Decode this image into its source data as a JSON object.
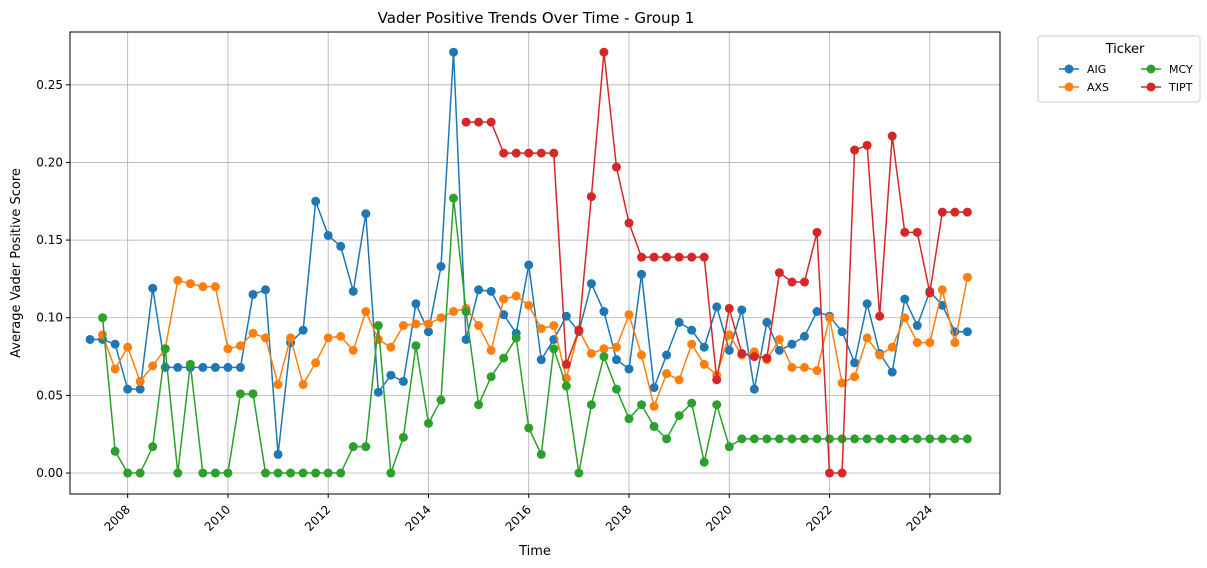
{
  "chart_data": {
    "type": "line",
    "title": "Vader Positive Trends Over Time - Group 1",
    "xlabel": "Time",
    "ylabel": "Average Vader Positive Score",
    "xlim": [
      2006.85,
      2025.4
    ],
    "ylim": [
      -0.0135,
      0.284
    ],
    "xticks": [
      "2008",
      "2010",
      "2012",
      "2014",
      "2016",
      "2018",
      "2020",
      "2022",
      "2024"
    ],
    "yticks": [
      "0.00",
      "0.05",
      "0.10",
      "0.15",
      "0.20",
      "0.25"
    ],
    "grid": true,
    "legend": {
      "title": "Ticker",
      "placement": "outside-top-right",
      "columns": 2
    },
    "series": [
      {
        "name": "AIG",
        "color": "#1f77b4",
        "points": [
          [
            2007.25,
            0.086
          ],
          [
            2007.5,
            0.086
          ],
          [
            2007.75,
            0.083
          ],
          [
            2008.0,
            0.054
          ],
          [
            2008.25,
            0.054
          ],
          [
            2008.5,
            0.119
          ],
          [
            2008.75,
            0.068
          ],
          [
            2009.0,
            0.068
          ],
          [
            2009.25,
            0.068
          ],
          [
            2009.5,
            0.068
          ],
          [
            2009.75,
            0.068
          ],
          [
            2010.0,
            0.068
          ],
          [
            2010.25,
            0.068
          ],
          [
            2010.5,
            0.115
          ],
          [
            2010.75,
            0.118
          ],
          [
            2011.0,
            0.012
          ],
          [
            2011.25,
            0.084
          ],
          [
            2011.5,
            0.092
          ],
          [
            2011.75,
            0.175
          ],
          [
            2012.0,
            0.153
          ],
          [
            2012.25,
            0.146
          ],
          [
            2012.5,
            0.117
          ],
          [
            2012.75,
            0.167
          ],
          [
            2013.0,
            0.052
          ],
          [
            2013.25,
            0.063
          ],
          [
            2013.5,
            0.059
          ],
          [
            2013.75,
            0.109
          ],
          [
            2014.0,
            0.091
          ],
          [
            2014.25,
            0.133
          ],
          [
            2014.5,
            0.271
          ],
          [
            2014.75,
            0.086
          ],
          [
            2015.0,
            0.118
          ],
          [
            2015.25,
            0.117
          ],
          [
            2015.5,
            0.102
          ],
          [
            2015.75,
            0.09
          ],
          [
            2016.0,
            0.134
          ],
          [
            2016.25,
            0.073
          ],
          [
            2016.5,
            0.086
          ],
          [
            2016.75,
            0.101
          ],
          [
            2017.0,
            0.091
          ],
          [
            2017.25,
            0.122
          ],
          [
            2017.5,
            0.104
          ],
          [
            2017.75,
            0.073
          ],
          [
            2018.0,
            0.067
          ],
          [
            2018.25,
            0.128
          ],
          [
            2018.5,
            0.055
          ],
          [
            2018.75,
            0.076
          ],
          [
            2019.0,
            0.097
          ],
          [
            2019.25,
            0.092
          ],
          [
            2019.5,
            0.081
          ],
          [
            2019.75,
            0.107
          ],
          [
            2020.0,
            0.079
          ],
          [
            2020.25,
            0.105
          ],
          [
            2020.5,
            0.054
          ],
          [
            2020.75,
            0.097
          ],
          [
            2021.0,
            0.079
          ],
          [
            2021.25,
            0.083
          ],
          [
            2021.5,
            0.088
          ],
          [
            2021.75,
            0.104
          ],
          [
            2022.0,
            0.101
          ],
          [
            2022.25,
            0.091
          ],
          [
            2022.5,
            0.071
          ],
          [
            2022.75,
            0.109
          ],
          [
            2023.0,
            0.077
          ],
          [
            2023.25,
            0.065
          ],
          [
            2023.5,
            0.112
          ],
          [
            2023.75,
            0.095
          ],
          [
            2024.0,
            0.117
          ],
          [
            2024.25,
            0.108
          ],
          [
            2024.5,
            0.091
          ],
          [
            2024.75,
            0.091
          ]
        ]
      },
      {
        "name": "AXS",
        "color": "#ff7f0e",
        "points": [
          [
            2007.5,
            0.089
          ],
          [
            2007.75,
            0.067
          ],
          [
            2008.0,
            0.081
          ],
          [
            2008.25,
            0.059
          ],
          [
            2008.5,
            0.069
          ],
          [
            2008.75,
            0.08
          ],
          [
            2009.0,
            0.124
          ],
          [
            2009.25,
            0.122
          ],
          [
            2009.5,
            0.12
          ],
          [
            2009.75,
            0.12
          ],
          [
            2010.0,
            0.08
          ],
          [
            2010.25,
            0.082
          ],
          [
            2010.5,
            0.09
          ],
          [
            2010.75,
            0.087
          ],
          [
            2011.0,
            0.057
          ],
          [
            2011.25,
            0.087
          ],
          [
            2011.5,
            0.057
          ],
          [
            2011.75,
            0.071
          ],
          [
            2012.0,
            0.087
          ],
          [
            2012.25,
            0.088
          ],
          [
            2012.5,
            0.079
          ],
          [
            2012.75,
            0.104
          ],
          [
            2013.0,
            0.086
          ],
          [
            2013.25,
            0.081
          ],
          [
            2013.5,
            0.095
          ],
          [
            2013.75,
            0.096
          ],
          [
            2014.0,
            0.096
          ],
          [
            2014.25,
            0.1
          ],
          [
            2014.5,
            0.104
          ],
          [
            2014.75,
            0.106
          ],
          [
            2015.0,
            0.095
          ],
          [
            2015.25,
            0.079
          ],
          [
            2015.5,
            0.112
          ],
          [
            2015.75,
            0.114
          ],
          [
            2016.0,
            0.108
          ],
          [
            2016.25,
            0.093
          ],
          [
            2016.5,
            0.095
          ],
          [
            2016.75,
            0.061
          ],
          [
            2017.0,
            0.092
          ],
          [
            2017.25,
            0.077
          ],
          [
            2017.5,
            0.08
          ],
          [
            2017.75,
            0.081
          ],
          [
            2018.0,
            0.102
          ],
          [
            2018.25,
            0.076
          ],
          [
            2018.5,
            0.043
          ],
          [
            2018.75,
            0.064
          ],
          [
            2019.0,
            0.06
          ],
          [
            2019.25,
            0.083
          ],
          [
            2019.5,
            0.07
          ],
          [
            2019.75,
            0.063
          ],
          [
            2020.0,
            0.089
          ],
          [
            2020.25,
            0.076
          ],
          [
            2020.5,
            0.078
          ],
          [
            2020.75,
            0.073
          ],
          [
            2021.0,
            0.086
          ],
          [
            2021.25,
            0.068
          ],
          [
            2021.5,
            0.068
          ],
          [
            2021.75,
            0.066
          ],
          [
            2022.0,
            0.1
          ],
          [
            2022.25,
            0.058
          ],
          [
            2022.5,
            0.062
          ],
          [
            2022.75,
            0.087
          ],
          [
            2023.0,
            0.076
          ],
          [
            2023.25,
            0.081
          ],
          [
            2023.5,
            0.1
          ],
          [
            2023.75,
            0.084
          ],
          [
            2024.0,
            0.084
          ],
          [
            2024.25,
            0.118
          ],
          [
            2024.5,
            0.084
          ],
          [
            2024.75,
            0.126
          ]
        ]
      },
      {
        "name": "MCY",
        "color": "#2ca02c",
        "points": [
          [
            2007.5,
            0.1
          ],
          [
            2007.75,
            0.014
          ],
          [
            2008.0,
            0.0
          ],
          [
            2008.25,
            0.0
          ],
          [
            2008.5,
            0.017
          ],
          [
            2008.75,
            0.08
          ],
          [
            2009.0,
            0.0
          ],
          [
            2009.25,
            0.07
          ],
          [
            2009.5,
            0.0
          ],
          [
            2009.75,
            0.0
          ],
          [
            2010.0,
            0.0
          ],
          [
            2010.25,
            0.051
          ],
          [
            2010.5,
            0.051
          ],
          [
            2010.75,
            0.0
          ],
          [
            2011.0,
            0.0
          ],
          [
            2011.25,
            0.0
          ],
          [
            2011.5,
            0.0
          ],
          [
            2011.75,
            0.0
          ],
          [
            2012.0,
            0.0
          ],
          [
            2012.25,
            0.0
          ],
          [
            2012.5,
            0.017
          ],
          [
            2012.75,
            0.017
          ],
          [
            2013.0,
            0.095
          ],
          [
            2013.25,
            0.0
          ],
          [
            2013.5,
            0.023
          ],
          [
            2013.75,
            0.082
          ],
          [
            2014.0,
            0.032
          ],
          [
            2014.25,
            0.047
          ],
          [
            2014.5,
            0.177
          ],
          [
            2014.75,
            0.104
          ],
          [
            2015.0,
            0.044
          ],
          [
            2015.25,
            0.062
          ],
          [
            2015.5,
            0.074
          ],
          [
            2015.75,
            0.087
          ],
          [
            2016.0,
            0.029
          ],
          [
            2016.25,
            0.012
          ],
          [
            2016.5,
            0.08
          ],
          [
            2016.75,
            0.056
          ],
          [
            2017.0,
            0.0
          ],
          [
            2017.25,
            0.044
          ],
          [
            2017.5,
            0.075
          ],
          [
            2017.75,
            0.054
          ],
          [
            2018.0,
            0.035
          ],
          [
            2018.25,
            0.044
          ],
          [
            2018.5,
            0.03
          ],
          [
            2018.75,
            0.022
          ],
          [
            2019.0,
            0.037
          ],
          [
            2019.25,
            0.045
          ],
          [
            2019.5,
            0.007
          ],
          [
            2019.75,
            0.044
          ],
          [
            2020.0,
            0.017
          ],
          [
            2020.25,
            0.022
          ],
          [
            2020.5,
            0.022
          ],
          [
            2020.75,
            0.022
          ],
          [
            2021.0,
            0.022
          ],
          [
            2021.25,
            0.022
          ],
          [
            2021.5,
            0.022
          ],
          [
            2021.75,
            0.022
          ],
          [
            2022.0,
            0.022
          ],
          [
            2022.25,
            0.022
          ],
          [
            2022.5,
            0.022
          ],
          [
            2022.75,
            0.022
          ],
          [
            2023.0,
            0.022
          ],
          [
            2023.25,
            0.022
          ],
          [
            2023.5,
            0.022
          ],
          [
            2023.75,
            0.022
          ],
          [
            2024.0,
            0.022
          ],
          [
            2024.25,
            0.022
          ],
          [
            2024.5,
            0.022
          ],
          [
            2024.75,
            0.022
          ]
        ]
      },
      {
        "name": "TIPT",
        "color": "#d62728",
        "points": [
          [
            2014.75,
            0.226
          ],
          [
            2015.0,
            0.226
          ],
          [
            2015.25,
            0.226
          ],
          [
            2015.5,
            0.206
          ],
          [
            2015.75,
            0.206
          ],
          [
            2016.0,
            0.206
          ],
          [
            2016.25,
            0.206
          ],
          [
            2016.5,
            0.206
          ],
          [
            2016.75,
            0.07
          ],
          [
            2017.0,
            0.092
          ],
          [
            2017.25,
            0.178
          ],
          [
            2017.5,
            0.271
          ],
          [
            2017.75,
            0.197
          ],
          [
            2018.0,
            0.161
          ],
          [
            2018.25,
            0.139
          ],
          [
            2018.5,
            0.139
          ],
          [
            2018.75,
            0.139
          ],
          [
            2019.0,
            0.139
          ],
          [
            2019.25,
            0.139
          ],
          [
            2019.5,
            0.139
          ],
          [
            2019.75,
            0.06
          ],
          [
            2020.0,
            0.106
          ],
          [
            2020.25,
            0.077
          ],
          [
            2020.5,
            0.075
          ],
          [
            2020.75,
            0.074
          ],
          [
            2021.0,
            0.129
          ],
          [
            2021.25,
            0.123
          ],
          [
            2021.5,
            0.123
          ],
          [
            2021.75,
            0.155
          ],
          [
            2022.0,
            0.0
          ],
          [
            2022.25,
            0.0
          ],
          [
            2022.5,
            0.208
          ],
          [
            2022.75,
            0.211
          ],
          [
            2023.0,
            0.101
          ],
          [
            2023.25,
            0.217
          ],
          [
            2023.5,
            0.155
          ],
          [
            2023.75,
            0.155
          ],
          [
            2024.0,
            0.116
          ],
          [
            2024.25,
            0.168
          ],
          [
            2024.5,
            0.168
          ],
          [
            2024.75,
            0.168
          ]
        ]
      }
    ]
  }
}
